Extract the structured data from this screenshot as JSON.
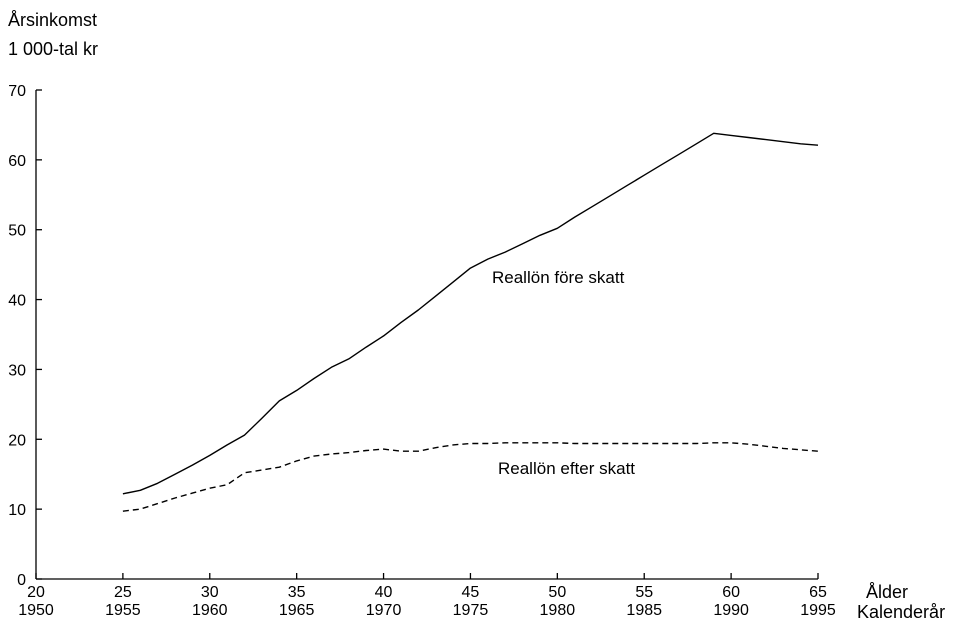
{
  "chart_data": {
    "type": "line",
    "ylabel_lines": [
      "Årsinkomst",
      "1 000-tal kr"
    ],
    "xlabel_age": "Ålder",
    "xlabel_year": "Kalenderår",
    "xlim": [
      20,
      65
    ],
    "ylim": [
      0,
      70
    ],
    "yticks": [
      0,
      10,
      20,
      30,
      40,
      50,
      60,
      70
    ],
    "xticks": [
      {
        "age": "20",
        "year": "1950"
      },
      {
        "age": "25",
        "year": "1955"
      },
      {
        "age": "30",
        "year": "1960"
      },
      {
        "age": "35",
        "year": "1965"
      },
      {
        "age": "40",
        "year": "1970"
      },
      {
        "age": "45",
        "year": "1975"
      },
      {
        "age": "50",
        "year": "1980"
      },
      {
        "age": "55",
        "year": "1985"
      },
      {
        "age": "60",
        "year": "1990"
      },
      {
        "age": "65",
        "year": "1995"
      }
    ],
    "grid": false,
    "series": [
      {
        "name": "Reallön före skatt",
        "style": "solid",
        "x": [
          25,
          26,
          27,
          28,
          29,
          30,
          31,
          32,
          33,
          34,
          35,
          36,
          37,
          38,
          39,
          40,
          41,
          42,
          43,
          44,
          45,
          46,
          47,
          48,
          49,
          50,
          51,
          52,
          53,
          54,
          55,
          56,
          57,
          58,
          59,
          60,
          61,
          62,
          63,
          64,
          65
        ],
        "y": [
          12.2,
          12.7,
          13.7,
          15.0,
          16.3,
          17.7,
          19.2,
          20.6,
          23.0,
          25.5,
          27.0,
          28.7,
          30.3,
          31.5,
          33.2,
          34.8,
          36.7,
          38.5,
          40.5,
          42.5,
          44.5,
          45.8,
          46.8,
          48.0,
          49.2,
          50.2,
          51.8,
          53.3,
          54.8,
          56.3,
          57.8,
          59.3,
          60.8,
          62.3,
          63.8,
          63.5,
          63.2,
          62.9,
          62.6,
          62.3,
          62.1
        ],
        "line_x": [
          25,
          26,
          27,
          28,
          29,
          30,
          31,
          32,
          33,
          34,
          35,
          36,
          37,
          38,
          39,
          40,
          41,
          42,
          43,
          44,
          45,
          46,
          47,
          48,
          49,
          50,
          51,
          52,
          53,
          54,
          55,
          56,
          57,
          58,
          59,
          60,
          61,
          62,
          63,
          64,
          65
        ]
      },
      {
        "name": "Reallön efter skatt",
        "style": "dashed",
        "x": [
          25,
          26,
          27,
          28,
          29,
          30,
          31,
          32,
          33,
          34,
          35,
          36,
          37,
          38,
          39,
          40,
          41,
          42,
          43,
          44,
          45,
          46,
          47,
          48,
          49,
          50,
          51,
          52,
          53,
          54,
          55,
          56,
          57,
          58,
          59,
          60,
          61,
          62,
          63,
          64,
          65
        ],
        "y": [
          9.7,
          10.0,
          10.8,
          11.6,
          12.3,
          13.0,
          13.5,
          15.2,
          15.6,
          16.0,
          16.9,
          17.6,
          17.9,
          18.1,
          18.4,
          18.6,
          18.3,
          18.3,
          18.8,
          19.2,
          19.4,
          19.4,
          19.5,
          19.5,
          19.5,
          19.5,
          19.4,
          19.4,
          19.4,
          19.4,
          19.4,
          19.4,
          19.4,
          19.4,
          19.5,
          19.5,
          19.3,
          19.0,
          18.7,
          18.5,
          18.3
        ]
      }
    ]
  }
}
